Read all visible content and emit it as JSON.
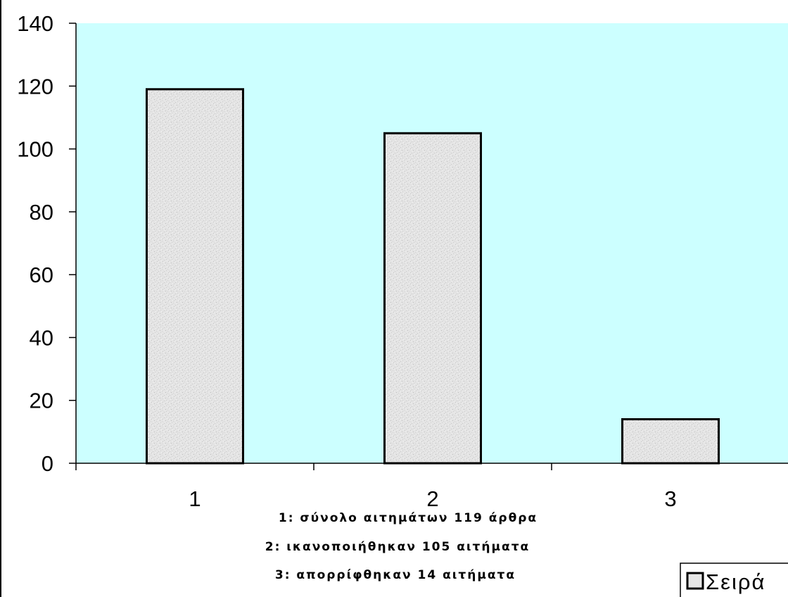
{
  "chart_data": {
    "type": "bar",
    "categories": [
      "1",
      "2",
      "3"
    ],
    "values": [
      119,
      105,
      14
    ],
    "ylim": [
      0,
      140
    ],
    "yticks": [
      0,
      20,
      40,
      60,
      80,
      100,
      120,
      140
    ],
    "grid": false,
    "legend": {
      "placement": "bottom-right",
      "label": "Σειρά"
    },
    "annotations": [
      "1: σύνολο αιτημάτων 119  άρθρα",
      "2: ικανοποιήθηκαν 105 αιτήματα",
      "3: απορρίφθηκαν 14 αιτήματα"
    ],
    "colors": {
      "plot_background": "#ccffff",
      "bar_fill": "#e6e6e6",
      "bar_stroke": "#000000"
    }
  }
}
